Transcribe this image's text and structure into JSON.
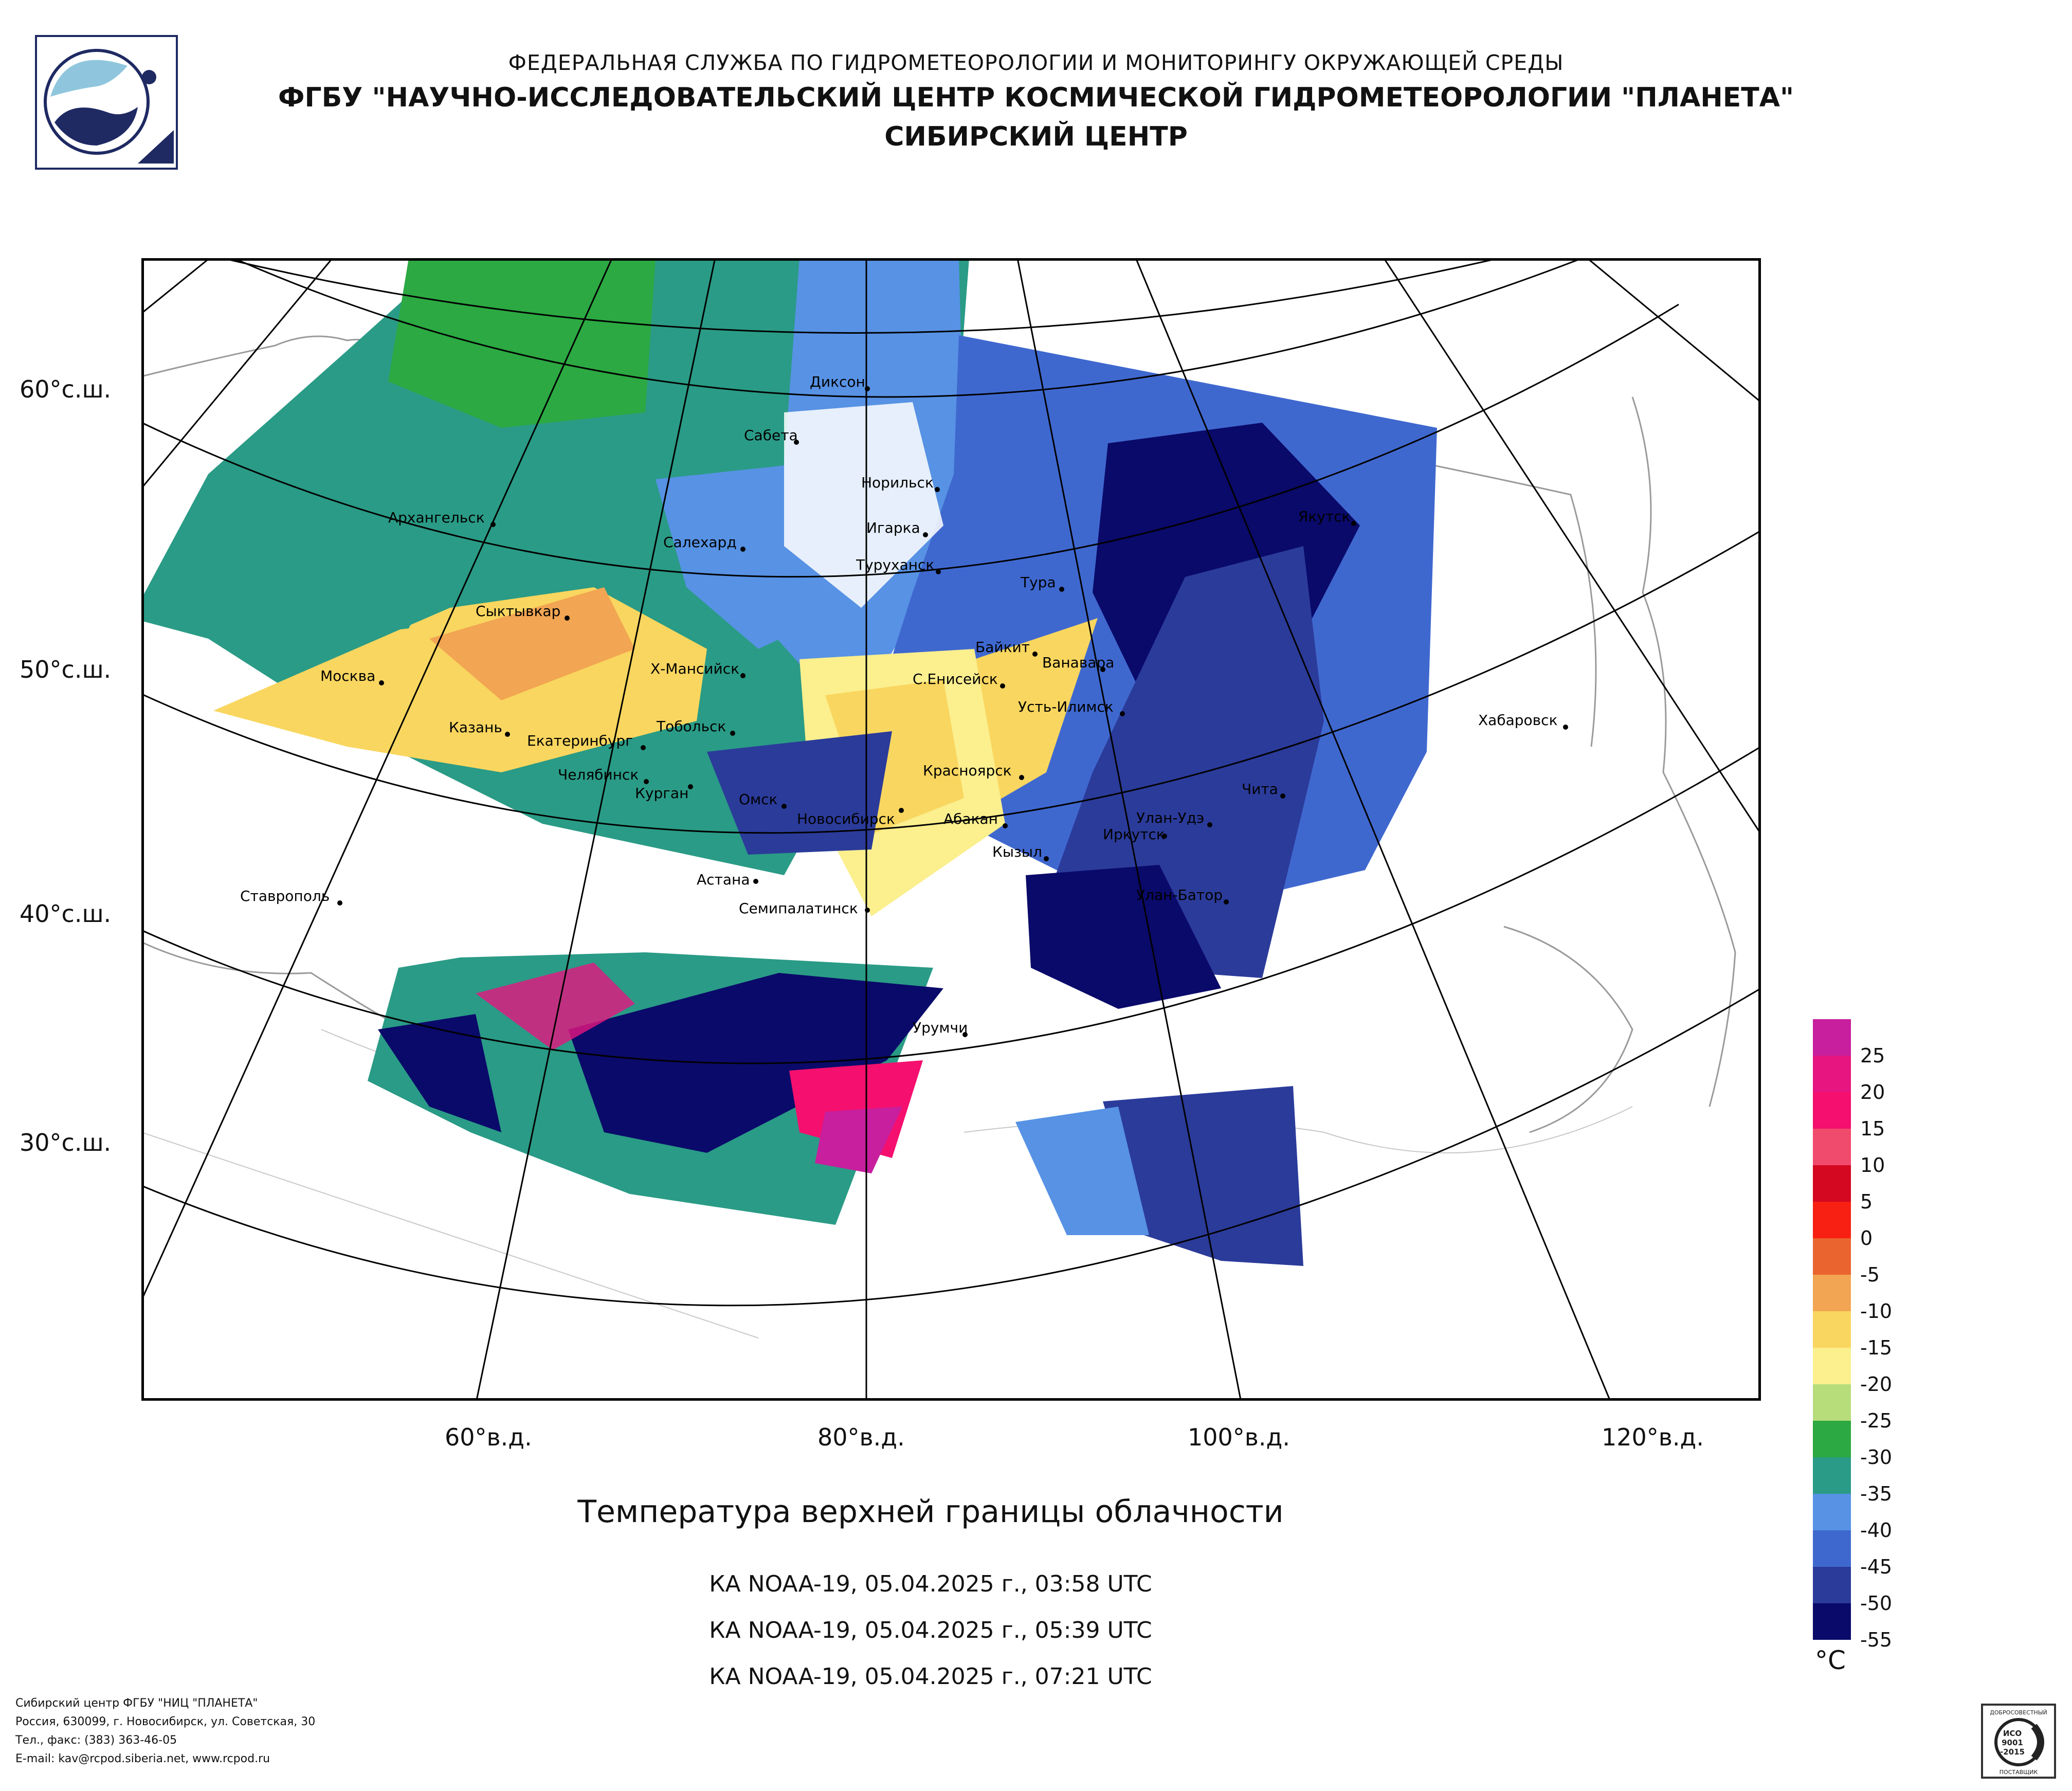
{
  "header": {
    "agency": "ФЕДЕРАЛЬНАЯ СЛУЖБА ПО ГИДРОМЕТЕОРОЛОГИИ И МОНИТОРИНГУ ОКРУЖАЮЩЕЙ СРЕДЫ",
    "institute": "ФГБУ \"НАУЧНО-ИССЛЕДОВАТЕЛЬСКИЙ ЦЕНТР КОСМИЧЕСКОЙ ГИДРОМЕТЕОРОЛОГИИ \"ПЛАНЕТА\"",
    "center": "СИБИРСКИЙ ЦЕНТР"
  },
  "map": {
    "lat_labels": [
      "60°с.ш.",
      "50°с.ш.",
      "40°с.ш.",
      "30°с.ш."
    ],
    "lon_labels": [
      "60°в.д.",
      "80°в.д.",
      "100°в.д.",
      "120°в.д."
    ],
    "cities": [
      {
        "name": "Диксон"
      },
      {
        "name": "Сабета"
      },
      {
        "name": "Норильск"
      },
      {
        "name": "Архангельск"
      },
      {
        "name": "Игарка"
      },
      {
        "name": "Салехард"
      },
      {
        "name": "Туруханск"
      },
      {
        "name": "Якутск"
      },
      {
        "name": "Тура"
      },
      {
        "name": "Сыктывкар"
      },
      {
        "name": "Байкит"
      },
      {
        "name": "Ванавара"
      },
      {
        "name": "Москва"
      },
      {
        "name": "Х-Мансийск"
      },
      {
        "name": "С.Енисейск"
      },
      {
        "name": "Усть-Илимск"
      },
      {
        "name": "Хабаровск"
      },
      {
        "name": "Казань"
      },
      {
        "name": "Тобольск"
      },
      {
        "name": "Екатеринбург"
      },
      {
        "name": "Красноярск"
      },
      {
        "name": "Челябинск"
      },
      {
        "name": "Курган"
      },
      {
        "name": "Омск"
      },
      {
        "name": "Чита"
      },
      {
        "name": "Новосибирск"
      },
      {
        "name": "Абакан"
      },
      {
        "name": "Улан-Удэ"
      },
      {
        "name": "Иркутск"
      },
      {
        "name": "Кызыл"
      },
      {
        "name": "Астана"
      },
      {
        "name": "Ставрополь"
      },
      {
        "name": "Семипалатинск"
      },
      {
        "name": "Улан-Батор"
      },
      {
        "name": "Урумчи"
      }
    ]
  },
  "legend": {
    "unit": "°C",
    "values": [
      "25",
      "20",
      "15",
      "10",
      "5",
      "0",
      "-5",
      "-10",
      "-15",
      "-20",
      "-25",
      "-30",
      "-35",
      "-40",
      "-45",
      "-50",
      "-55"
    ],
    "colors": [
      "#c71f9e",
      "#e6157f",
      "#f50f6e",
      "#f04a6c",
      "#d40820",
      "#f82012",
      "#ea6430",
      "#f2a552",
      "#f9d65f",
      "#fbef8e",
      "#b6dd7a",
      "#2ca942",
      "#2a9b86",
      "#5792e4",
      "#3f68cf",
      "#2b3b9a",
      "#0a0a6a"
    ]
  },
  "caption": {
    "title": "Температура верхней границы облачности",
    "passes": [
      "КА NOAA-19, 05.04.2025 г., 03:58 UTC",
      "КА NOAA-19, 05.04.2025 г., 05:39 UTC",
      "КА NOAA-19, 05.04.2025 г., 07:21 UTC"
    ]
  },
  "footer": {
    "line1": "Сибирский центр ФГБУ \"НИЦ \"ПЛАНЕТА\"",
    "line2": "Россия, 630099, г. Новосибирск, ул. Советская, 30",
    "line3": "Тел., факс: (383) 363-46-05",
    "line4": "E-mail: kav@rcpod.siberia.net, www.rcpod.ru"
  },
  "cert": {
    "top": "ДОБРОСОВЕСТНЫЙ",
    "mid1": "ИСО",
    "mid2": "9001",
    "mid3": "-2015",
    "bottom": "ПОСТАВЩИК"
  }
}
